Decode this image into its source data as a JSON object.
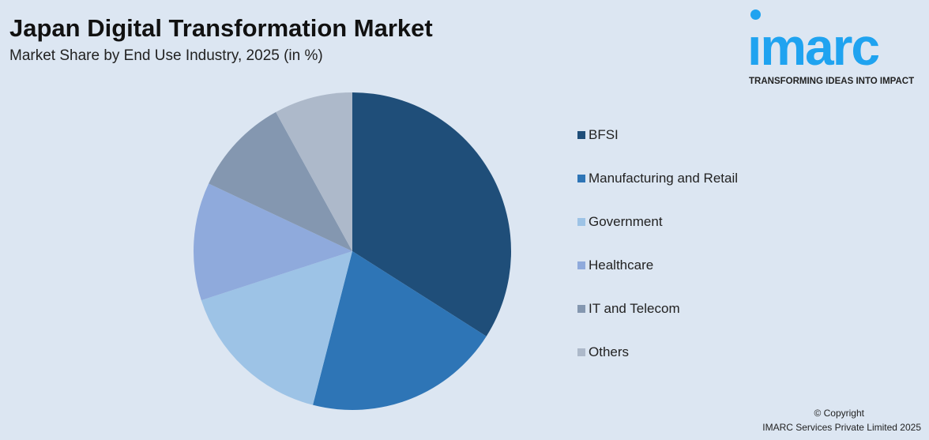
{
  "header": {
    "title": "Japan Digital Transformation Market",
    "subtitle": "Market Share by End Use Industry, 2025 (in %)"
  },
  "logo": {
    "text": "imarc",
    "tagline": "TRANSFORMING IDEAS INTO IMPACT",
    "color": "#1fa3f0"
  },
  "chart_data": {
    "type": "pie",
    "title": "Japan Digital Transformation Market",
    "subtitle": "Market Share by End Use Industry, 2025 (in %)",
    "categories": [
      "BFSI",
      "Manufacturing and Retail",
      "Government",
      "Healthcare",
      "IT and Telecom",
      "Others"
    ],
    "values": [
      34,
      20,
      16,
      12,
      10,
      8
    ],
    "colors": [
      "#1f4e79",
      "#2e75b6",
      "#9dc3e6",
      "#8faadc",
      "#8497b0",
      "#adb9ca"
    ],
    "start_angle": "12 o'clock",
    "direction": "clockwise",
    "legend_position": "right"
  },
  "footer": {
    "copyright": "© Copyright",
    "company": "IMARC Services Private Limited 2025"
  }
}
